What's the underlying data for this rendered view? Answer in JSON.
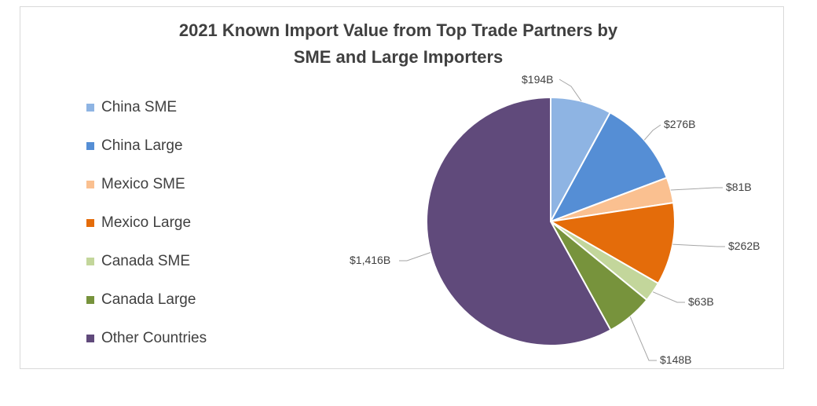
{
  "chart_data": {
    "type": "pie",
    "title": "2021 Known Import Value from Top Trade Partners by SME and Large Importers",
    "title_lines": [
      "2021 Known Import Value from Top Trade Partners by",
      "SME and Large Importers"
    ],
    "legend_position": "left",
    "categories": [
      "China SME",
      "China Large",
      "Mexico SME",
      "Mexico Large",
      "Canada SME",
      "Canada Large",
      "Other Countries"
    ],
    "values": [
      194,
      276,
      81,
      262,
      63,
      148,
      1416
    ],
    "data_labels": [
      "$194B",
      "$276B",
      "$81B",
      "$262B",
      "$63B",
      "$148B",
      "$1,416B"
    ],
    "unit": "billion USD",
    "colors": [
      "#8EB4E3",
      "#558ED5",
      "#FAC090",
      "#E46C0A",
      "#C3D69B",
      "#77933C",
      "#604A7B"
    ]
  }
}
